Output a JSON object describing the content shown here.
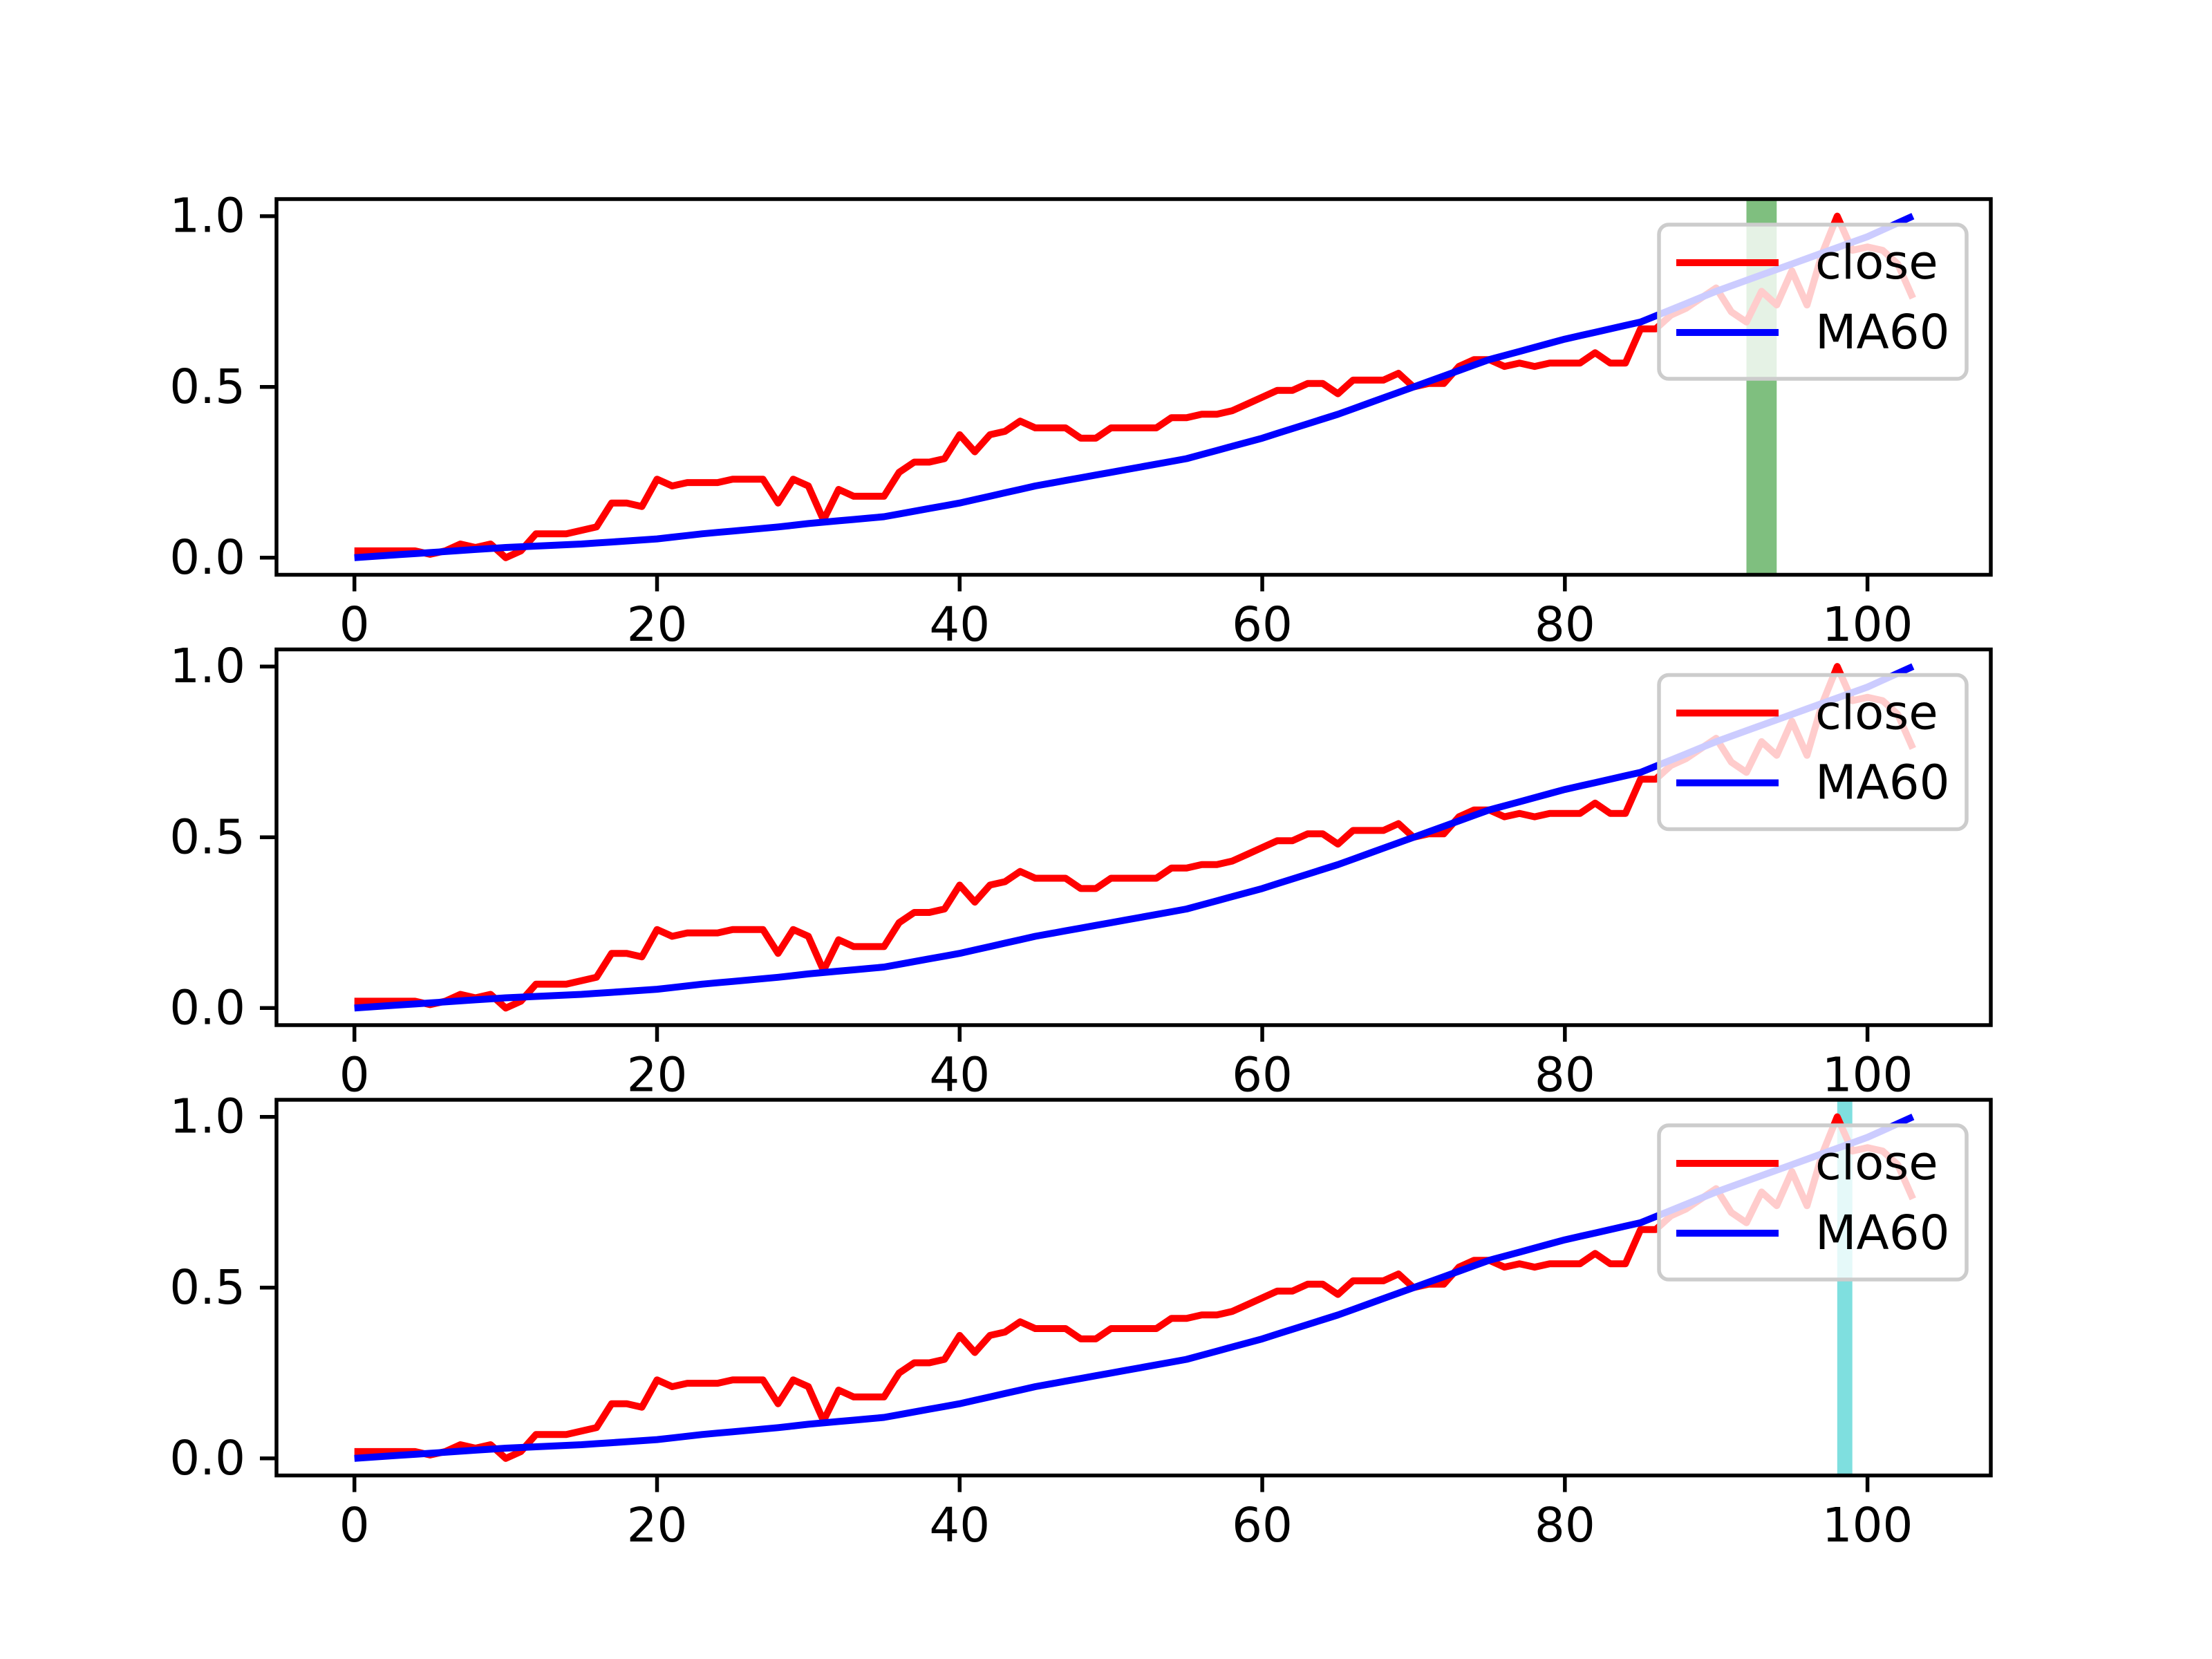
{
  "chart_data": [
    {
      "type": "line",
      "x": [
        0,
        1,
        2,
        3,
        4,
        5,
        6,
        7,
        8,
        9,
        10,
        11,
        12,
        13,
        14,
        15,
        16,
        17,
        18,
        19,
        20,
        21,
        22,
        23,
        24,
        25,
        26,
        27,
        28,
        29,
        30,
        31,
        32,
        33,
        34,
        35,
        36,
        37,
        38,
        39,
        40,
        41,
        42,
        43,
        44,
        45,
        46,
        47,
        48,
        49,
        50,
        51,
        52,
        53,
        54,
        55,
        56,
        57,
        58,
        59,
        60,
        61,
        62,
        63,
        64,
        65,
        66,
        67,
        68,
        69,
        70,
        71,
        72,
        73,
        74,
        75,
        76,
        77,
        78,
        79,
        80,
        81,
        82,
        83,
        84,
        85,
        86,
        87,
        88,
        89,
        90,
        91,
        92,
        93,
        94,
        95,
        96,
        97,
        98,
        99,
        100,
        101,
        102,
        103
      ],
      "series": [
        {
          "name": "close",
          "color": "red",
          "values": [
            0.02,
            0.02,
            0.02,
            0.02,
            0.02,
            0.01,
            0.02,
            0.04,
            0.03,
            0.04,
            0.0,
            0.02,
            0.07,
            0.07,
            0.07,
            0.08,
            0.09,
            0.16,
            0.16,
            0.15,
            0.23,
            0.21,
            0.22,
            0.22,
            0.22,
            0.23,
            0.23,
            0.23,
            0.16,
            0.23,
            0.21,
            0.11,
            0.2,
            0.18,
            0.18,
            0.18,
            0.25,
            0.28,
            0.28,
            0.29,
            0.36,
            0.31,
            0.36,
            0.37,
            0.4,
            0.38,
            0.38,
            0.38,
            0.35,
            0.35,
            0.38,
            0.38,
            0.38,
            0.38,
            0.41,
            0.41,
            0.42,
            0.42,
            0.43,
            0.45,
            0.47,
            0.49,
            0.49,
            0.51,
            0.51,
            0.48,
            0.52,
            0.52,
            0.52,
            0.54,
            0.5,
            0.51,
            0.51,
            0.56,
            0.58,
            0.58,
            0.56,
            0.57,
            0.56,
            0.57,
            0.57,
            0.57,
            0.6,
            0.57,
            0.57,
            0.67,
            0.67,
            0.71,
            0.73,
            0.76,
            0.79,
            0.72,
            0.69,
            0.78,
            0.74,
            0.84,
            0.74,
            0.89,
            1.0,
            0.9,
            0.91,
            0.9,
            0.86,
            0.76
          ]
        },
        {
          "name": "MA60",
          "color": "blue",
          "values": [
            0,
            0.003,
            0.006,
            0.009,
            0.012,
            0.015,
            0.018,
            0.021,
            0.024,
            0.027,
            0.03,
            0.032,
            0.034,
            0.036,
            0.038,
            0.04,
            0.043,
            0.046,
            0.049,
            0.052,
            0.055,
            0.06,
            0.065,
            0.07,
            0.074,
            0.078,
            0.082,
            0.086,
            0.09,
            0.095,
            0.1,
            0.104,
            0.108,
            0.112,
            0.116,
            0.12,
            0.128,
            0.136,
            0.144,
            0.152,
            0.16,
            0.17,
            0.18,
            0.19,
            0.2,
            0.21,
            0.218,
            0.226,
            0.234,
            0.242,
            0.25,
            0.258,
            0.266,
            0.274,
            0.282,
            0.29,
            0.302,
            0.314,
            0.326,
            0.338,
            0.35,
            0.364,
            0.378,
            0.392,
            0.406,
            0.42,
            0.436,
            0.452,
            0.468,
            0.484,
            0.5,
            0.516,
            0.532,
            0.548,
            0.564,
            0.58,
            0.592,
            0.604,
            0.616,
            0.628,
            0.64,
            0.65,
            0.66,
            0.67,
            0.68,
            0.69,
            0.708,
            0.726,
            0.744,
            0.762,
            0.78,
            0.796,
            0.812,
            0.828,
            0.844,
            0.86,
            0.876,
            0.892,
            0.908,
            0.924,
            0.94,
            0.96,
            0.98,
            1.0
          ]
        }
      ],
      "spans": [
        {
          "x0": 92,
          "x1": 94,
          "color": "#008000",
          "alpha": 0.5
        }
      ],
      "xlim": [
        -5.15,
        108.15
      ],
      "xticks": [
        0,
        20,
        40,
        60,
        80,
        100
      ],
      "ylim": [
        -0.05,
        1.05
      ],
      "yticks": [
        {
          "value": 0,
          "label": "0.0"
        },
        0.5,
        {
          "value": 1,
          "label": "1.0"
        }
      ],
      "legend": "upper right"
    },
    {
      "type": "line",
      "x": [
        0,
        1,
        2,
        3,
        4,
        5,
        6,
        7,
        8,
        9,
        10,
        11,
        12,
        13,
        14,
        15,
        16,
        17,
        18,
        19,
        20,
        21,
        22,
        23,
        24,
        25,
        26,
        27,
        28,
        29,
        30,
        31,
        32,
        33,
        34,
        35,
        36,
        37,
        38,
        39,
        40,
        41,
        42,
        43,
        44,
        45,
        46,
        47,
        48,
        49,
        50,
        51,
        52,
        53,
        54,
        55,
        56,
        57,
        58,
        59,
        60,
        61,
        62,
        63,
        64,
        65,
        66,
        67,
        68,
        69,
        70,
        71,
        72,
        73,
        74,
        75,
        76,
        77,
        78,
        79,
        80,
        81,
        82,
        83,
        84,
        85,
        86,
        87,
        88,
        89,
        90,
        91,
        92,
        93,
        94,
        95,
        96,
        97,
        98,
        99,
        100,
        101,
        102,
        103
      ],
      "series": [
        {
          "name": "close",
          "color": "red",
          "values": [
            0.02,
            0.02,
            0.02,
            0.02,
            0.02,
            0.01,
            0.02,
            0.04,
            0.03,
            0.04,
            0.0,
            0.02,
            0.07,
            0.07,
            0.07,
            0.08,
            0.09,
            0.16,
            0.16,
            0.15,
            0.23,
            0.21,
            0.22,
            0.22,
            0.22,
            0.23,
            0.23,
            0.23,
            0.16,
            0.23,
            0.21,
            0.11,
            0.2,
            0.18,
            0.18,
            0.18,
            0.25,
            0.28,
            0.28,
            0.29,
            0.36,
            0.31,
            0.36,
            0.37,
            0.4,
            0.38,
            0.38,
            0.38,
            0.35,
            0.35,
            0.38,
            0.38,
            0.38,
            0.38,
            0.41,
            0.41,
            0.42,
            0.42,
            0.43,
            0.45,
            0.47,
            0.49,
            0.49,
            0.51,
            0.51,
            0.48,
            0.52,
            0.52,
            0.52,
            0.54,
            0.5,
            0.51,
            0.51,
            0.56,
            0.58,
            0.58,
            0.56,
            0.57,
            0.56,
            0.57,
            0.57,
            0.57,
            0.6,
            0.57,
            0.57,
            0.67,
            0.67,
            0.71,
            0.73,
            0.76,
            0.79,
            0.72,
            0.69,
            0.78,
            0.74,
            0.84,
            0.74,
            0.89,
            1.0,
            0.9,
            0.91,
            0.9,
            0.86,
            0.76
          ]
        },
        {
          "name": "MA60",
          "color": "blue",
          "values": [
            0,
            0.003,
            0.006,
            0.009,
            0.012,
            0.015,
            0.018,
            0.021,
            0.024,
            0.027,
            0.03,
            0.032,
            0.034,
            0.036,
            0.038,
            0.04,
            0.043,
            0.046,
            0.049,
            0.052,
            0.055,
            0.06,
            0.065,
            0.07,
            0.074,
            0.078,
            0.082,
            0.086,
            0.09,
            0.095,
            0.1,
            0.104,
            0.108,
            0.112,
            0.116,
            0.12,
            0.128,
            0.136,
            0.144,
            0.152,
            0.16,
            0.17,
            0.18,
            0.19,
            0.2,
            0.21,
            0.218,
            0.226,
            0.234,
            0.242,
            0.25,
            0.258,
            0.266,
            0.274,
            0.282,
            0.29,
            0.302,
            0.314,
            0.326,
            0.338,
            0.35,
            0.364,
            0.378,
            0.392,
            0.406,
            0.42,
            0.436,
            0.452,
            0.468,
            0.484,
            0.5,
            0.516,
            0.532,
            0.548,
            0.564,
            0.58,
            0.592,
            0.604,
            0.616,
            0.628,
            0.64,
            0.65,
            0.66,
            0.67,
            0.68,
            0.69,
            0.708,
            0.726,
            0.744,
            0.762,
            0.78,
            0.796,
            0.812,
            0.828,
            0.844,
            0.86,
            0.876,
            0.892,
            0.908,
            0.924,
            0.94,
            0.96,
            0.98,
            1.0
          ]
        }
      ],
      "xlim": [
        -5.15,
        108.15
      ],
      "xticks": [
        0,
        20,
        40,
        60,
        80,
        100
      ],
      "ylim": [
        -0.05,
        1.05
      ],
      "yticks": [
        {
          "value": 0,
          "label": "0.0"
        },
        0.5,
        {
          "value": 1,
          "label": "1.0"
        }
      ],
      "legend": "upper right"
    },
    {
      "type": "line",
      "x": [
        0,
        1,
        2,
        3,
        4,
        5,
        6,
        7,
        8,
        9,
        10,
        11,
        12,
        13,
        14,
        15,
        16,
        17,
        18,
        19,
        20,
        21,
        22,
        23,
        24,
        25,
        26,
        27,
        28,
        29,
        30,
        31,
        32,
        33,
        34,
        35,
        36,
        37,
        38,
        39,
        40,
        41,
        42,
        43,
        44,
        45,
        46,
        47,
        48,
        49,
        50,
        51,
        52,
        53,
        54,
        55,
        56,
        57,
        58,
        59,
        60,
        61,
        62,
        63,
        64,
        65,
        66,
        67,
        68,
        69,
        70,
        71,
        72,
        73,
        74,
        75,
        76,
        77,
        78,
        79,
        80,
        81,
        82,
        83,
        84,
        85,
        86,
        87,
        88,
        89,
        90,
        91,
        92,
        93,
        94,
        95,
        96,
        97,
        98,
        99,
        100,
        101,
        102,
        103
      ],
      "series": [
        {
          "name": "close",
          "color": "red",
          "values": [
            0.02,
            0.02,
            0.02,
            0.02,
            0.02,
            0.01,
            0.02,
            0.04,
            0.03,
            0.04,
            0.0,
            0.02,
            0.07,
            0.07,
            0.07,
            0.08,
            0.09,
            0.16,
            0.16,
            0.15,
            0.23,
            0.21,
            0.22,
            0.22,
            0.22,
            0.23,
            0.23,
            0.23,
            0.16,
            0.23,
            0.21,
            0.11,
            0.2,
            0.18,
            0.18,
            0.18,
            0.25,
            0.28,
            0.28,
            0.29,
            0.36,
            0.31,
            0.36,
            0.37,
            0.4,
            0.38,
            0.38,
            0.38,
            0.35,
            0.35,
            0.38,
            0.38,
            0.38,
            0.38,
            0.41,
            0.41,
            0.42,
            0.42,
            0.43,
            0.45,
            0.47,
            0.49,
            0.49,
            0.51,
            0.51,
            0.48,
            0.52,
            0.52,
            0.52,
            0.54,
            0.5,
            0.51,
            0.51,
            0.56,
            0.58,
            0.58,
            0.56,
            0.57,
            0.56,
            0.57,
            0.57,
            0.57,
            0.6,
            0.57,
            0.57,
            0.67,
            0.67,
            0.71,
            0.73,
            0.76,
            0.79,
            0.72,
            0.69,
            0.78,
            0.74,
            0.84,
            0.74,
            0.89,
            1.0,
            0.9,
            0.91,
            0.9,
            0.86,
            0.76
          ]
        },
        {
          "name": "MA60",
          "color": "blue",
          "values": [
            0,
            0.003,
            0.006,
            0.009,
            0.012,
            0.015,
            0.018,
            0.021,
            0.024,
            0.027,
            0.03,
            0.032,
            0.034,
            0.036,
            0.038,
            0.04,
            0.043,
            0.046,
            0.049,
            0.052,
            0.055,
            0.06,
            0.065,
            0.07,
            0.074,
            0.078,
            0.082,
            0.086,
            0.09,
            0.095,
            0.1,
            0.104,
            0.108,
            0.112,
            0.116,
            0.12,
            0.128,
            0.136,
            0.144,
            0.152,
            0.16,
            0.17,
            0.18,
            0.19,
            0.2,
            0.21,
            0.218,
            0.226,
            0.234,
            0.242,
            0.25,
            0.258,
            0.266,
            0.274,
            0.282,
            0.29,
            0.302,
            0.314,
            0.326,
            0.338,
            0.35,
            0.364,
            0.378,
            0.392,
            0.406,
            0.42,
            0.436,
            0.452,
            0.468,
            0.484,
            0.5,
            0.516,
            0.532,
            0.548,
            0.564,
            0.58,
            0.592,
            0.604,
            0.616,
            0.628,
            0.64,
            0.65,
            0.66,
            0.67,
            0.68,
            0.69,
            0.708,
            0.726,
            0.744,
            0.762,
            0.78,
            0.796,
            0.812,
            0.828,
            0.844,
            0.86,
            0.876,
            0.892,
            0.908,
            0.924,
            0.94,
            0.96,
            0.98,
            1.0
          ]
        }
      ],
      "spans": [
        {
          "x0": 98,
          "x1": 99,
          "color": "#00bfbf",
          "alpha": 0.5
        }
      ],
      "xlim": [
        -5.15,
        108.15
      ],
      "xticks": [
        0,
        20,
        40,
        60,
        80,
        100
      ],
      "ylim": [
        -0.05,
        1.05
      ],
      "yticks": [
        {
          "value": 0,
          "label": "0.0"
        },
        0.5,
        {
          "value": 1,
          "label": "1.0"
        }
      ],
      "legend": "upper right"
    }
  ]
}
